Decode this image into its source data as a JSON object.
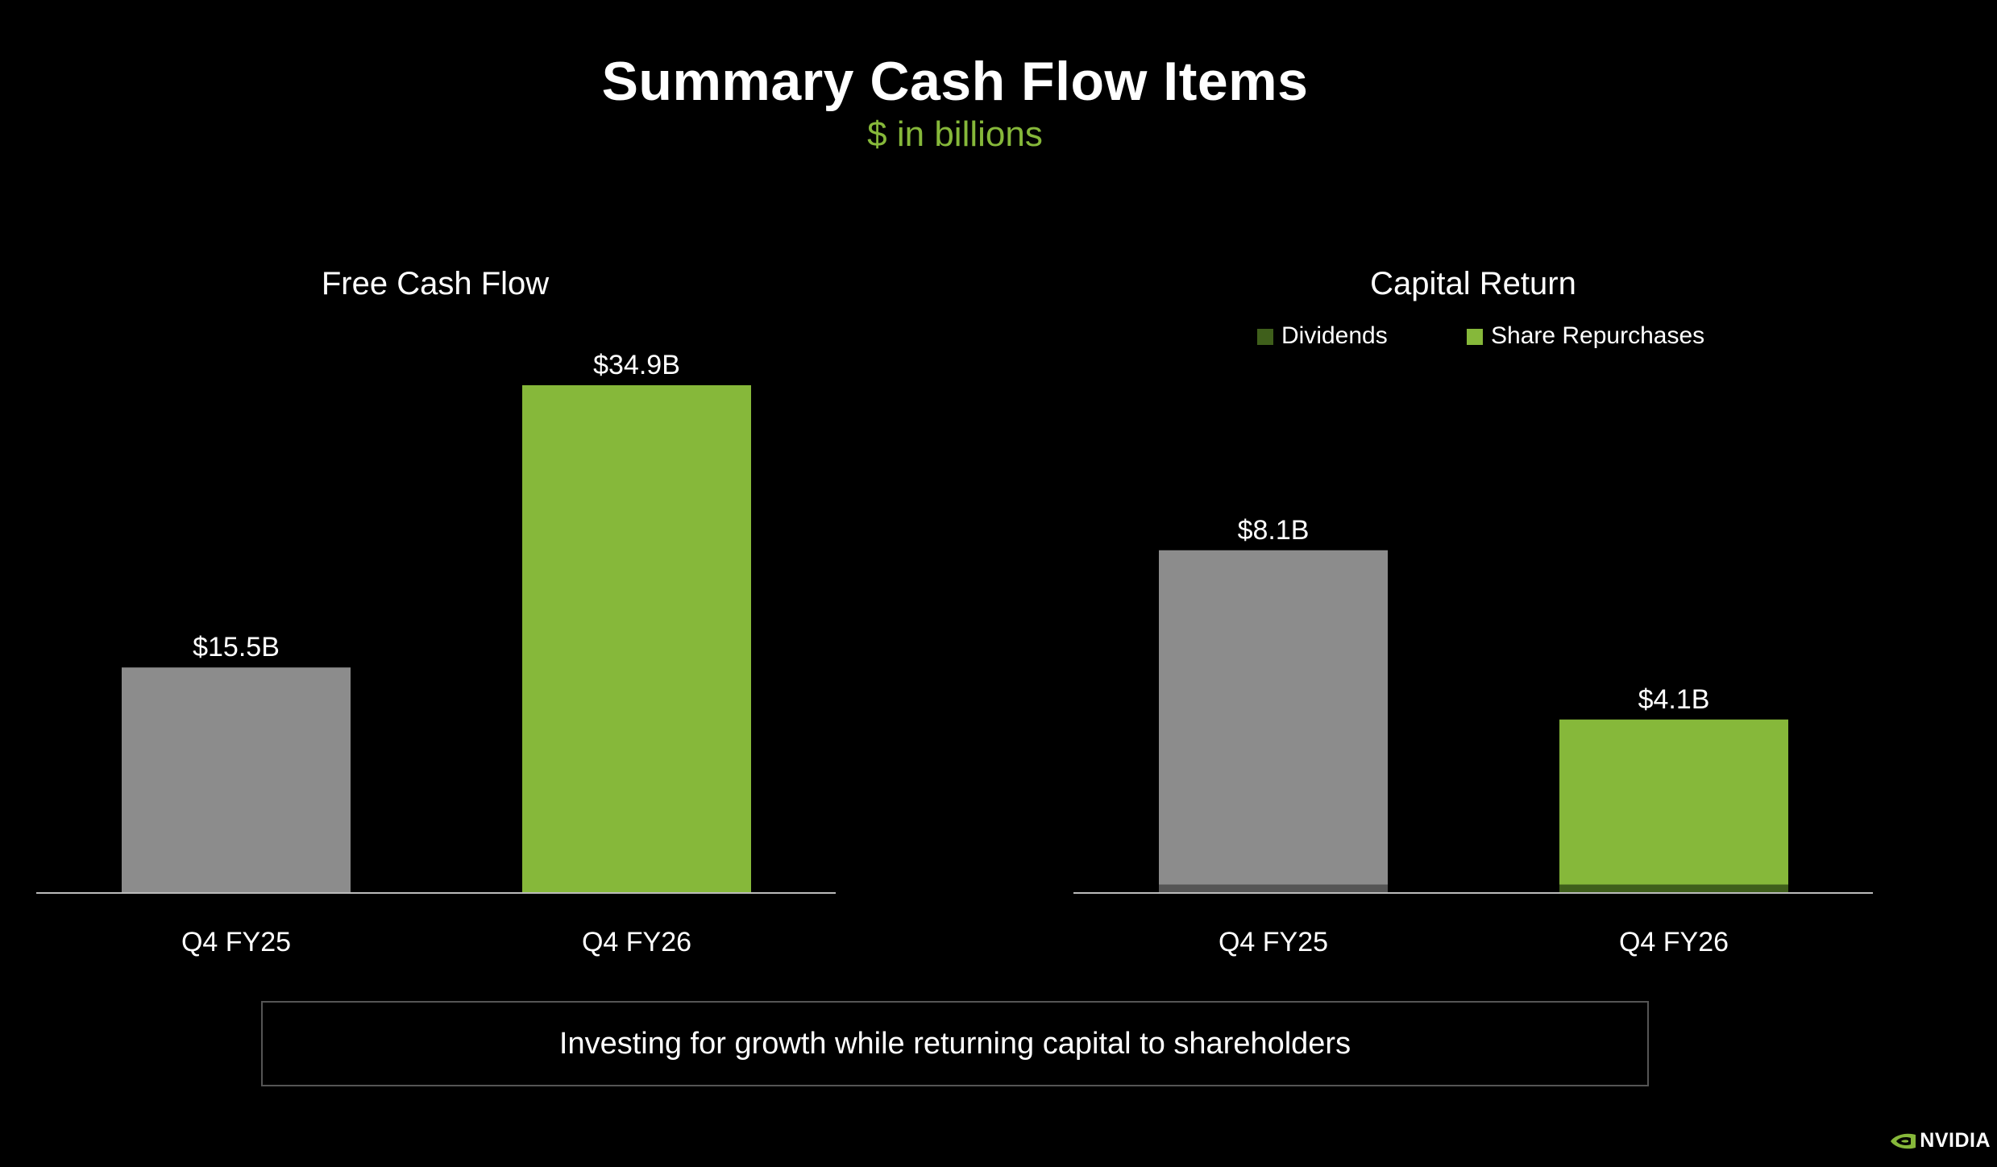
{
  "header": {
    "title": "Summary Cash Flow Items",
    "subtitle": "$ in billions"
  },
  "colors": {
    "green": "#86b83a",
    "gray": "#8c8c8c",
    "dark_green": "#3f5f1b",
    "dark_gray": "#555555",
    "axis": "#bbbbbb",
    "text": "#ffffff"
  },
  "chart_data": [
    {
      "type": "bar",
      "title": "Free Cash Flow",
      "categories": [
        "Q4 FY25",
        "Q4 FY26"
      ],
      "values": [
        15.5,
        34.9
      ],
      "labels": [
        "$15.5B",
        "$34.9B"
      ],
      "bar_colors": [
        "gray",
        "green"
      ],
      "ylim": [
        0,
        34.9
      ]
    },
    {
      "type": "bar",
      "stacked": true,
      "title": "Capital Return",
      "categories": [
        "Q4 FY25",
        "Q4 FY26"
      ],
      "legend": [
        {
          "name": "Dividends",
          "color": "dark_green"
        },
        {
          "name": "Share Repurchases",
          "color": "green"
        }
      ],
      "series": [
        {
          "name": "Dividends",
          "values": [
            0.2,
            0.2
          ]
        },
        {
          "name": "Share Repurchases",
          "values": [
            7.9,
            3.9
          ]
        }
      ],
      "totals": [
        8.1,
        4.1
      ],
      "labels": [
        "$8.1B",
        "$4.1B"
      ],
      "bar_colors": [
        [
          "dark_gray",
          "gray"
        ],
        [
          "dark_green",
          "green"
        ]
      ],
      "ylim": [
        0,
        12.0
      ]
    }
  ],
  "callout": {
    "text": "Investing for growth while returning capital to shareholders"
  },
  "logo": {
    "text": "NVIDIA"
  }
}
